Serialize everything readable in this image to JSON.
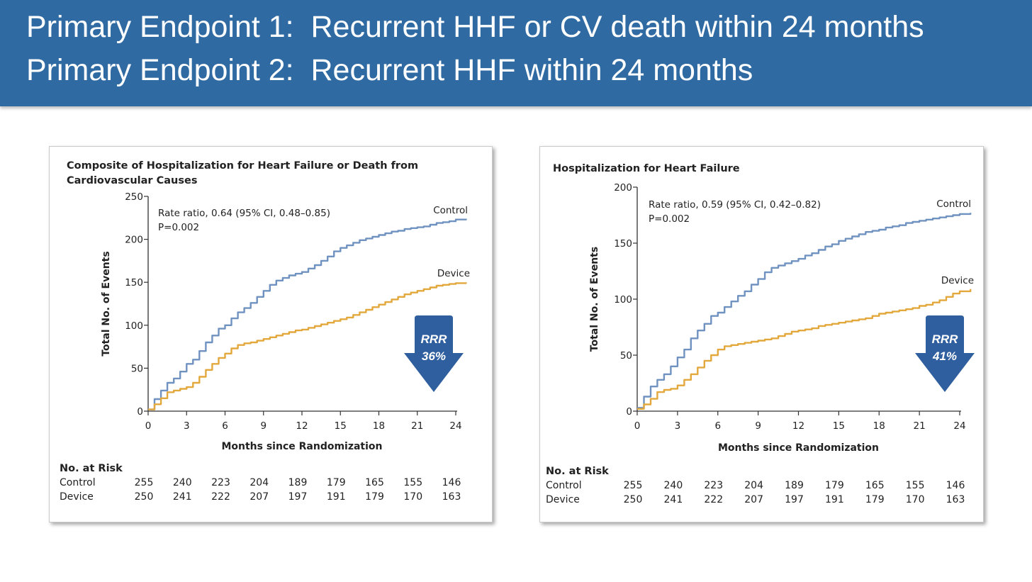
{
  "header": {
    "line1": "Primary Endpoint 1:  Recurrent HHF or CV death within 24 months",
    "line2": "Primary Endpoint 2:  Recurrent HHF within 24 months",
    "background": "#2f6aa3"
  },
  "chart_data": [
    {
      "type": "line",
      "title_lines": [
        "Composite of Hospitalization for Heart Failure or Death from",
        "Cardiovascular Causes"
      ],
      "xlabel": "Months since Randomization",
      "ylabel": "Total No. of Events",
      "xlim": [
        0,
        24
      ],
      "ylim": [
        0,
        250
      ],
      "xticks": [
        0,
        3,
        6,
        9,
        12,
        15,
        18,
        21,
        24
      ],
      "yticks": [
        0,
        50,
        100,
        150,
        200,
        250
      ],
      "annotation": [
        "Rate ratio, 0.64 (95% CI, 0.48–0.85)",
        "P=0.002"
      ],
      "rrr": {
        "label": "RRR",
        "value": "36%",
        "color": "#2f5f9e"
      },
      "series": [
        {
          "name": "Control",
          "label": "Control",
          "color": "#6f92c1",
          "x": [
            0,
            0.5,
            1,
            1.5,
            2,
            2.5,
            3,
            3.5,
            4,
            4.5,
            5,
            5.5,
            6,
            6.5,
            7,
            7.5,
            8,
            8.5,
            9,
            9.5,
            10,
            10.5,
            11,
            11.5,
            12,
            12.5,
            13,
            13.5,
            14,
            14.5,
            15,
            15.5,
            16,
            16.5,
            17,
            17.5,
            18,
            18.5,
            19,
            19.5,
            20,
            20.5,
            21,
            21.5,
            22,
            22.5,
            23,
            23.5,
            24,
            24.8
          ],
          "values": [
            2,
            14,
            24,
            33,
            38,
            46,
            55,
            60,
            70,
            80,
            88,
            96,
            100,
            108,
            115,
            120,
            126,
            133,
            140,
            147,
            152,
            155,
            158,
            160,
            162,
            166,
            170,
            175,
            180,
            186,
            190,
            193,
            196,
            199,
            201,
            203,
            205,
            207,
            209,
            210,
            212,
            213,
            214,
            215,
            217,
            219,
            220,
            221,
            223,
            224
          ]
        },
        {
          "name": "Device",
          "label": "Device",
          "color": "#e3a83c",
          "x": [
            0,
            0.5,
            1,
            1.5,
            2,
            2.5,
            3,
            3.5,
            4,
            4.5,
            5,
            5.5,
            6,
            6.5,
            7,
            7.5,
            8,
            8.5,
            9,
            9.5,
            10,
            10.5,
            11,
            11.5,
            12,
            12.5,
            13,
            13.5,
            14,
            14.5,
            15,
            15.5,
            16,
            16.5,
            17,
            17.5,
            18,
            18.5,
            19,
            19.5,
            20,
            20.5,
            21,
            21.5,
            22,
            22.5,
            23,
            23.5,
            24,
            24.8
          ],
          "values": [
            2,
            8,
            15,
            22,
            24,
            26,
            28,
            33,
            40,
            48,
            55,
            62,
            67,
            73,
            77,
            79,
            80,
            82,
            84,
            86,
            88,
            90,
            92,
            94,
            95,
            97,
            99,
            101,
            103,
            105,
            107,
            109,
            112,
            115,
            118,
            121,
            124,
            127,
            130,
            133,
            136,
            138,
            140,
            142,
            144,
            146,
            147,
            148,
            149,
            150
          ]
        }
      ],
      "risk_table": {
        "header": "No. at Risk",
        "rows": [
          {
            "label": "Control",
            "values": [
              "255",
              "240",
              "223",
              "204",
              "189",
              "179",
              "165",
              "155",
              "146"
            ]
          },
          {
            "label": "Device",
            "values": [
              "250",
              "241",
              "222",
              "207",
              "197",
              "191",
              "179",
              "170",
              "163"
            ]
          }
        ]
      }
    },
    {
      "type": "line",
      "title_lines": [
        "Hospitalization for Heart Failure"
      ],
      "xlabel": "Months since Randomization",
      "ylabel": "Total No. of Events",
      "xlim": [
        0,
        24
      ],
      "ylim": [
        0,
        200
      ],
      "xticks": [
        0,
        3,
        6,
        9,
        12,
        15,
        18,
        21,
        24
      ],
      "yticks": [
        0,
        50,
        100,
        150,
        200
      ],
      "annotation": [
        "Rate ratio, 0.59 (95% CI, 0.42–0.82)",
        "P=0.002"
      ],
      "rrr": {
        "label": "RRR",
        "value": "41%",
        "color": "#2f5f9e"
      },
      "series": [
        {
          "name": "Control",
          "label": "Control",
          "color": "#6f92c1",
          "x": [
            0,
            0.5,
            1,
            1.5,
            2,
            2.5,
            3,
            3.5,
            4,
            4.5,
            5,
            5.5,
            6,
            6.5,
            7,
            7.5,
            8,
            8.5,
            9,
            9.5,
            10,
            10.5,
            11,
            11.5,
            12,
            12.5,
            13,
            13.5,
            14,
            14.5,
            15,
            15.5,
            16,
            16.5,
            17,
            17.5,
            18,
            18.5,
            19,
            19.5,
            20,
            20.5,
            21,
            21.5,
            22,
            22.5,
            23,
            23.5,
            24,
            24.8
          ],
          "values": [
            3,
            13,
            22,
            28,
            33,
            40,
            48,
            55,
            65,
            72,
            78,
            85,
            88,
            93,
            98,
            103,
            107,
            113,
            118,
            124,
            128,
            130,
            132,
            134,
            136,
            139,
            141,
            144,
            147,
            149,
            152,
            154,
            156,
            158,
            160,
            161,
            162,
            164,
            165,
            166,
            168,
            169,
            170,
            171,
            172,
            173,
            174,
            175,
            176,
            177
          ]
        },
        {
          "name": "Device",
          "label": "Device",
          "color": "#e3a83c",
          "x": [
            0,
            0.5,
            1,
            1.5,
            2,
            2.5,
            3,
            3.5,
            4,
            4.5,
            5,
            5.5,
            6,
            6.5,
            7,
            7.5,
            8,
            8.5,
            9,
            9.5,
            10,
            10.5,
            11,
            11.5,
            12,
            12.5,
            13,
            13.5,
            14,
            14.5,
            15,
            15.5,
            16,
            16.5,
            17,
            17.5,
            18,
            18.5,
            19,
            19.5,
            20,
            20.5,
            21,
            21.5,
            22,
            22.5,
            23,
            23.5,
            24,
            24.8
          ],
          "values": [
            2,
            6,
            11,
            17,
            19,
            20,
            23,
            28,
            33,
            39,
            45,
            50,
            55,
            58,
            59,
            60,
            61,
            62,
            63,
            64,
            65,
            67,
            69,
            71,
            72,
            73,
            74,
            76,
            77,
            78,
            79,
            80,
            81,
            82,
            83,
            85,
            87,
            88,
            89,
            90,
            91,
            92,
            94,
            95,
            97,
            99,
            102,
            105,
            107,
            109
          ]
        }
      ],
      "risk_table": {
        "header": "No. at Risk",
        "rows": [
          {
            "label": "Control",
            "values": [
              "255",
              "240",
              "223",
              "204",
              "189",
              "179",
              "165",
              "155",
              "146"
            ]
          },
          {
            "label": "Device",
            "values": [
              "250",
              "241",
              "222",
              "207",
              "197",
              "191",
              "179",
              "170",
              "163"
            ]
          }
        ]
      }
    }
  ]
}
